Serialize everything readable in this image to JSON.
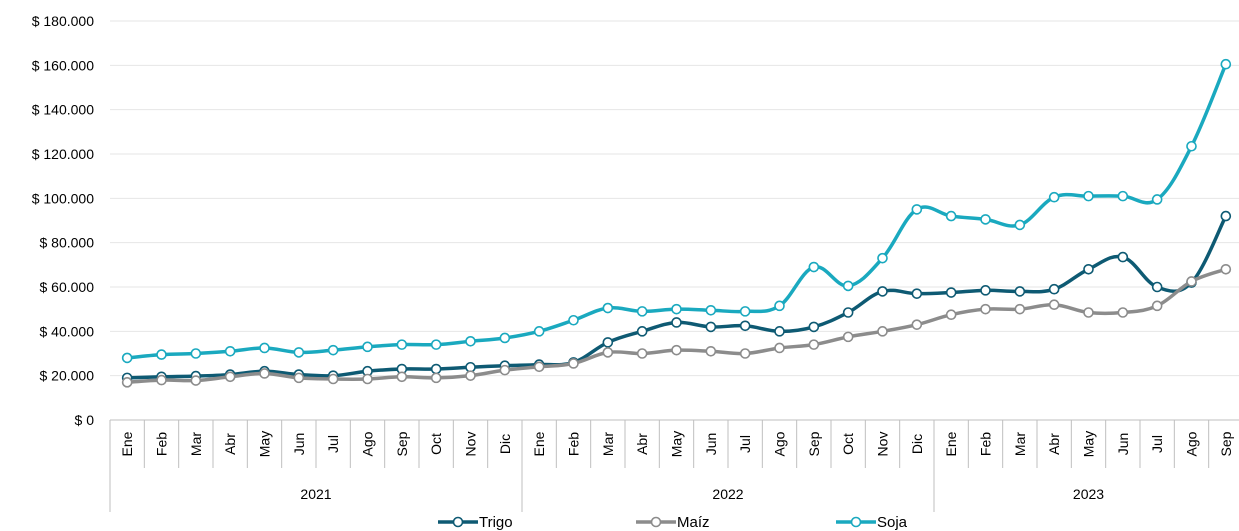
{
  "chart_data": {
    "type": "line",
    "title": "",
    "xlabel": "",
    "ylabel": "",
    "ylim": [
      0,
      180000
    ],
    "yticks": [
      "$ 0",
      "$ 20.000",
      "$ 40.000",
      "$ 60.000",
      "$ 80.000",
      "$ 100.000",
      "$ 120.000",
      "$ 140.000",
      "$ 160.000",
      "$ 180.000"
    ],
    "ytick_values": [
      0,
      20000,
      40000,
      60000,
      80000,
      100000,
      120000,
      140000,
      160000,
      180000
    ],
    "grid": true,
    "legend_position": "bottom",
    "categories": [
      "Ene",
      "Feb",
      "Mar",
      "Abr",
      "May",
      "Jun",
      "Jul",
      "Ago",
      "Sep",
      "Oct",
      "Nov",
      "Dic",
      "Ene",
      "Feb",
      "Mar",
      "Abr",
      "May",
      "Jun",
      "Jul",
      "Ago",
      "Sep",
      "Oct",
      "Nov",
      "Dic",
      "Ene",
      "Feb",
      "Mar",
      "Abr",
      "May",
      "Jun",
      "Jul",
      "Ago",
      "Sep"
    ],
    "year_groups": [
      {
        "label": "2021",
        "count": 12
      },
      {
        "label": "2022",
        "count": 12
      },
      {
        "label": "2023",
        "count": 9
      }
    ],
    "series": [
      {
        "name": "Trigo",
        "color": "#0e5a73",
        "values": [
          19000,
          19500,
          19800,
          20500,
          22000,
          20500,
          20000,
          22000,
          23000,
          23000,
          23800,
          24500,
          25000,
          26000,
          35000,
          40000,
          44000,
          42000,
          42500,
          40000,
          42000,
          48500,
          58000,
          57000,
          57500,
          58500,
          58000,
          59000,
          68000,
          73500,
          60000,
          62000,
          92000
        ]
      },
      {
        "name": "Maíz",
        "color": "#8c8c8c",
        "values": [
          17000,
          18000,
          17800,
          19500,
          21000,
          19000,
          18500,
          18500,
          19500,
          19000,
          20000,
          22500,
          24000,
          25500,
          30500,
          30000,
          31500,
          31000,
          30000,
          32500,
          34000,
          37500,
          40000,
          43000,
          47500,
          50000,
          50000,
          52000,
          48500,
          48500,
          51500,
          62500,
          68000
        ]
      },
      {
        "name": "Soja",
        "color": "#1aa9bf",
        "values": [
          28000,
          29500,
          30000,
          31000,
          32500,
          30500,
          31500,
          33000,
          34000,
          34000,
          35500,
          37000,
          40000,
          45000,
          50500,
          49000,
          50000,
          49500,
          49000,
          51500,
          69000,
          60500,
          73000,
          95000,
          92000,
          90500,
          88000,
          100500,
          101000,
          101000,
          99500,
          123500,
          160500
        ]
      }
    ]
  }
}
